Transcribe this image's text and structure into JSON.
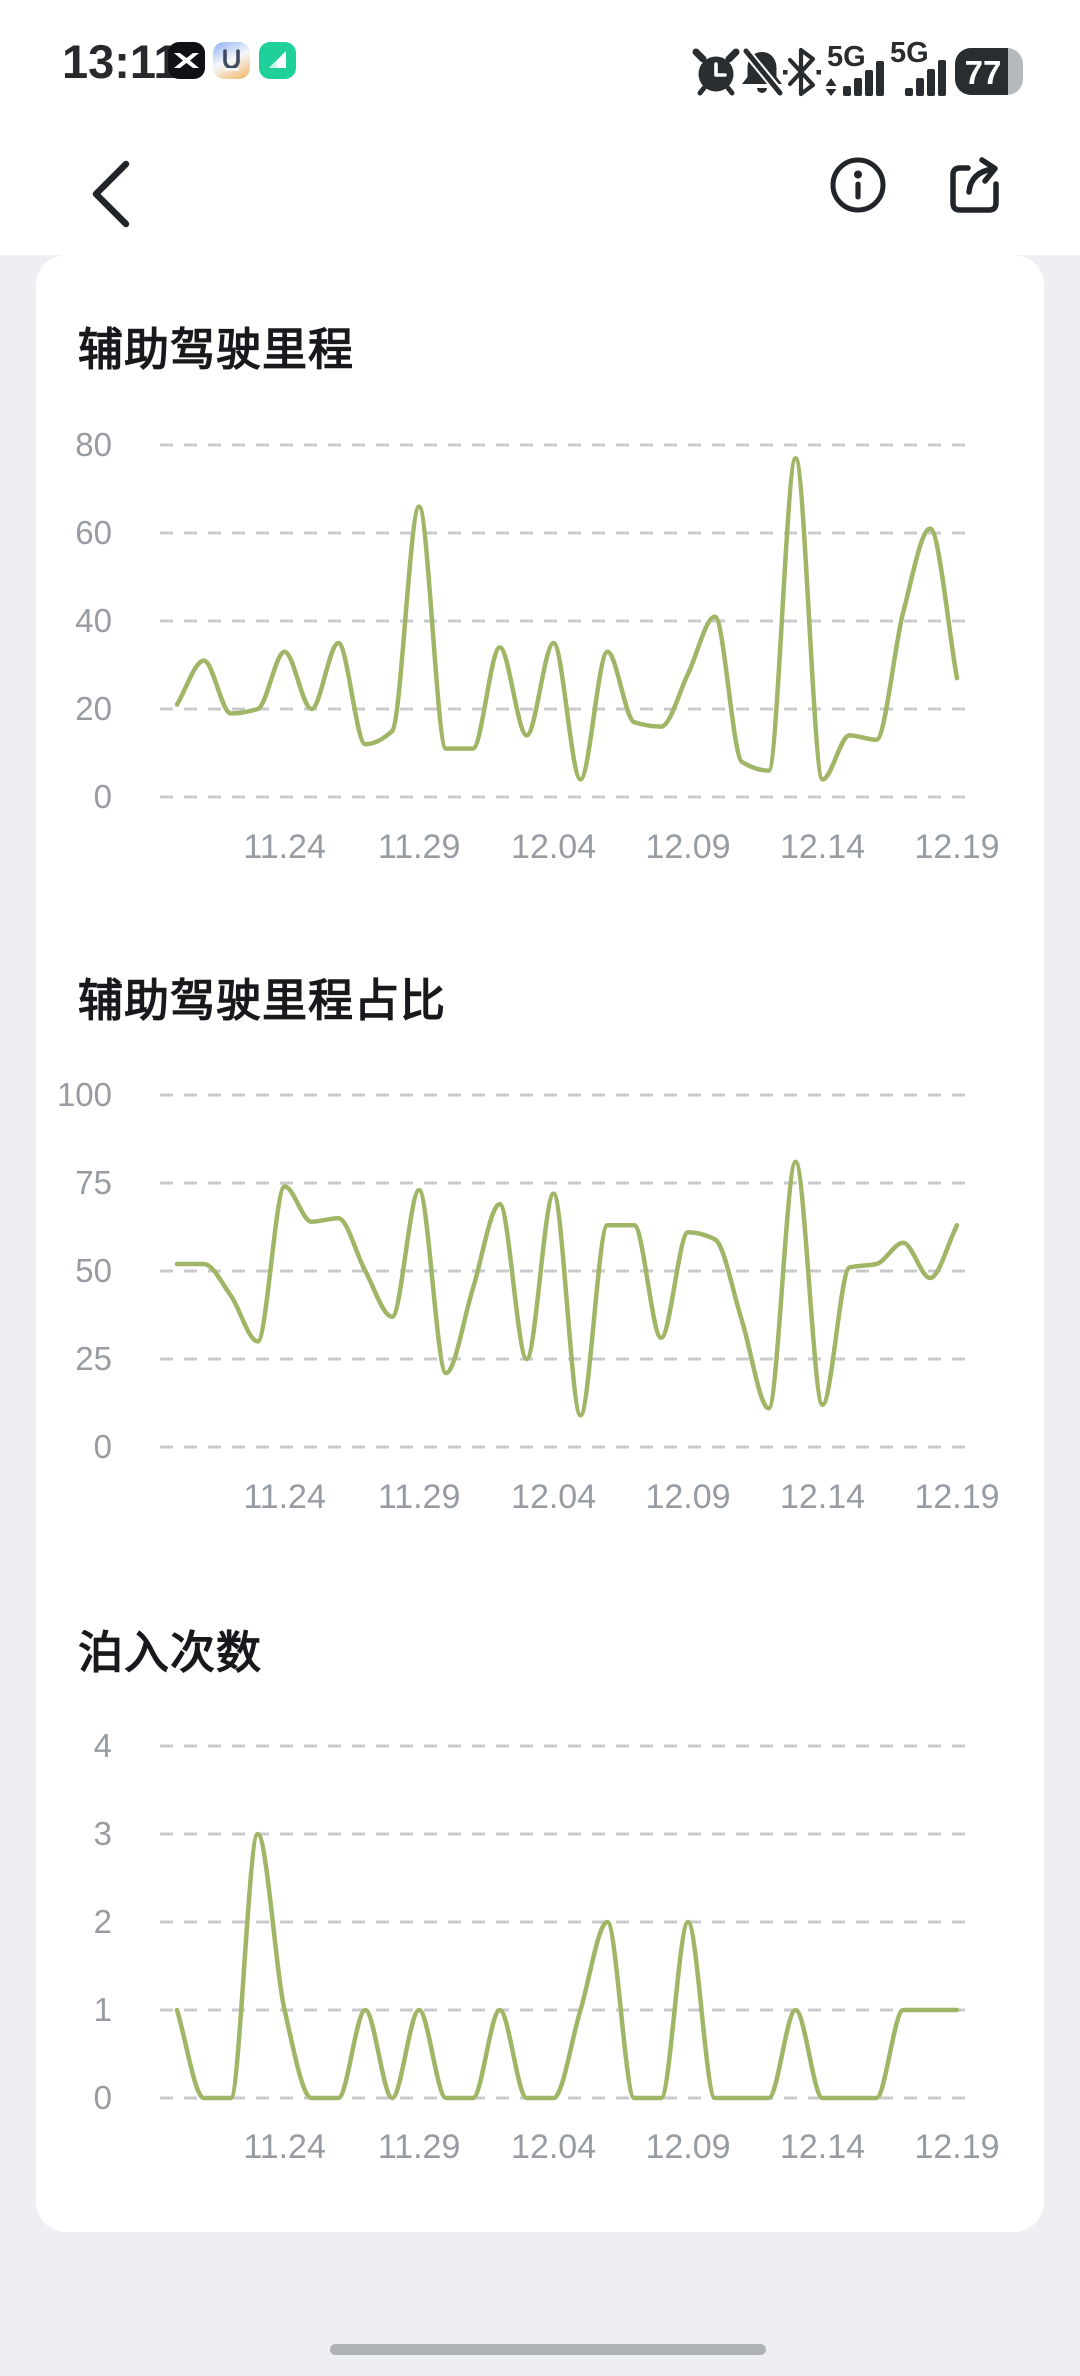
{
  "status_bar": {
    "time": "13:11",
    "app_icons": [
      "xpeng-app-icon",
      "bag-app-icon",
      "green-shield-app-icon"
    ],
    "sim1_label": "5G",
    "sim2_label": "5G",
    "battery_percent": "77"
  },
  "nav": {
    "back": "back-chevron",
    "info": "info-circle",
    "share": "share-forward"
  },
  "colors": {
    "line": "#a0b565",
    "grid": "#c8cacc",
    "axis_label": "#979ca2",
    "title": "#17191c",
    "card_bg": "#ffffff",
    "page_bg": "#edeff2",
    "status_icon": "#2a2d30"
  },
  "chart_data": [
    {
      "type": "line",
      "title": "辅助驾驶里程",
      "x": [
        "11.20",
        "11.21",
        "11.22",
        "11.23",
        "11.24",
        "11.25",
        "11.26",
        "11.27",
        "11.28",
        "11.29",
        "11.30",
        "12.01",
        "12.02",
        "12.03",
        "12.04",
        "12.05",
        "12.06",
        "12.07",
        "12.08",
        "12.09",
        "12.10",
        "12.11",
        "12.12",
        "12.13",
        "12.14",
        "12.15",
        "12.16",
        "12.17",
        "12.18",
        "12.19"
      ],
      "values": [
        21,
        31,
        19,
        20,
        33,
        20,
        35,
        12,
        15,
        66,
        11,
        11,
        34,
        14,
        35,
        4,
        33,
        17,
        16,
        28,
        41,
        8,
        6,
        77,
        4,
        14,
        13,
        42,
        61,
        27
      ],
      "ylim": [
        0,
        80
      ],
      "yticks": [
        80,
        60,
        40,
        20,
        0
      ],
      "xtick_labels": [
        "11.24",
        "11.29",
        "12.04",
        "12.09",
        "12.14",
        "12.19"
      ],
      "grid": "dashed-horizontal",
      "legend": "none",
      "xlabel": "",
      "ylabel": "",
      "line_color": "#a0b565"
    },
    {
      "type": "line",
      "title": "辅助驾驶里程占比",
      "x": [
        "11.20",
        "11.21",
        "11.22",
        "11.23",
        "11.24",
        "11.25",
        "11.26",
        "11.27",
        "11.28",
        "11.29",
        "11.30",
        "12.01",
        "12.02",
        "12.03",
        "12.04",
        "12.05",
        "12.06",
        "12.07",
        "12.08",
        "12.09",
        "12.10",
        "12.11",
        "12.12",
        "12.13",
        "12.14",
        "12.15",
        "12.16",
        "12.17",
        "12.18",
        "12.19"
      ],
      "values": [
        52,
        52,
        43,
        30,
        74,
        64,
        65,
        50,
        37,
        73,
        21,
        45,
        69,
        25,
        72,
        9,
        63,
        63,
        31,
        61,
        59,
        36,
        11,
        81,
        12,
        51,
        52,
        58,
        48,
        63
      ],
      "ylim": [
        0,
        100
      ],
      "yticks": [
        100,
        75,
        50,
        25,
        0
      ],
      "xtick_labels": [
        "11.24",
        "11.29",
        "12.04",
        "12.09",
        "12.14",
        "12.19"
      ],
      "grid": "dashed-horizontal",
      "legend": "none",
      "xlabel": "",
      "ylabel": "",
      "line_color": "#a0b565"
    },
    {
      "type": "line",
      "title": "泊入次数",
      "x": [
        "11.20",
        "11.21",
        "11.22",
        "11.23",
        "11.24",
        "11.25",
        "11.26",
        "11.27",
        "11.28",
        "11.29",
        "11.30",
        "12.01",
        "12.02",
        "12.03",
        "12.04",
        "12.05",
        "12.06",
        "12.07",
        "12.08",
        "12.09",
        "12.10",
        "12.11",
        "12.12",
        "12.13",
        "12.14",
        "12.15",
        "12.16",
        "12.17",
        "12.18",
        "12.19"
      ],
      "values": [
        1,
        0,
        0,
        3,
        1,
        0,
        0,
        1,
        0,
        1,
        0,
        0,
        1,
        0,
        0,
        1,
        2,
        0,
        0,
        2,
        0,
        0,
        0,
        1,
        0,
        0,
        0,
        1,
        1,
        1
      ],
      "ylim": [
        0,
        4
      ],
      "yticks": [
        4,
        3,
        2,
        1,
        0
      ],
      "xtick_labels": [
        "11.24",
        "11.29",
        "12.04",
        "12.09",
        "12.14",
        "12.19"
      ],
      "grid": "dashed-horizontal",
      "legend": "none",
      "xlabel": "",
      "ylabel": "",
      "line_color": "#a0b565"
    }
  ]
}
